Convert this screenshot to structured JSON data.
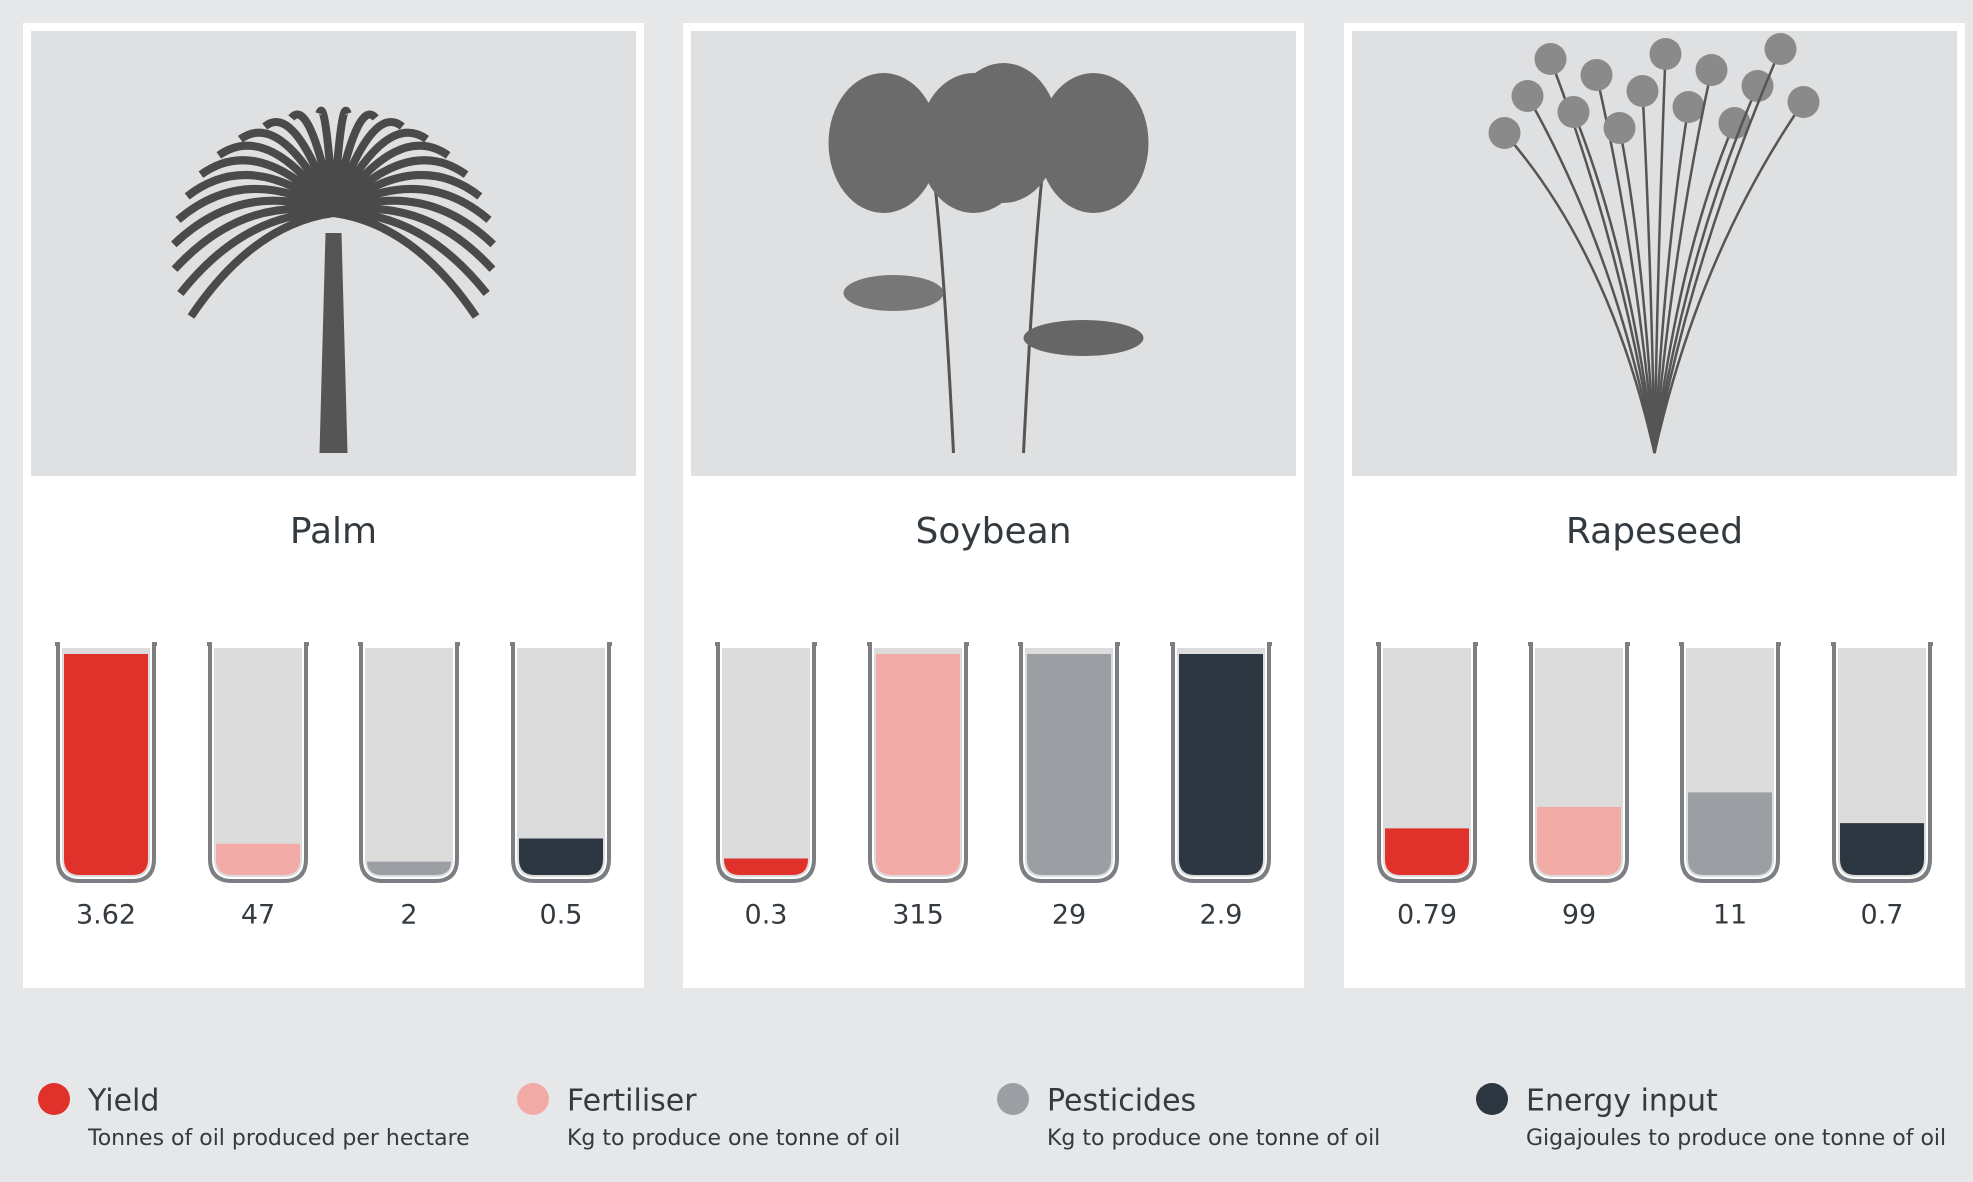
{
  "chart_data": {
    "type": "tubes",
    "categories": [
      "Palm",
      "Soybean",
      "Rapeseed"
    ],
    "series": [
      {
        "name": "Yield",
        "description": "Tonnes of oil produced per hectare",
        "color": "#e0312a",
        "values": [
          3.62,
          0.3,
          0.79
        ]
      },
      {
        "name": "Fertiliser",
        "description": "Kg to produce one tonne of oil",
        "color": "#f2aaa6",
        "values": [
          47,
          315,
          99
        ]
      },
      {
        "name": "Pesticides",
        "description": "Kg to produce one tonne of oil",
        "color": "#9b9fa3",
        "values": [
          2,
          29,
          11
        ]
      },
      {
        "name": "Energy input",
        "description": "Gigajoules to produce one tonne of oil",
        "color": "#2d3742",
        "values": [
          0.5,
          2.9,
          0.7
        ]
      }
    ]
  }
}
